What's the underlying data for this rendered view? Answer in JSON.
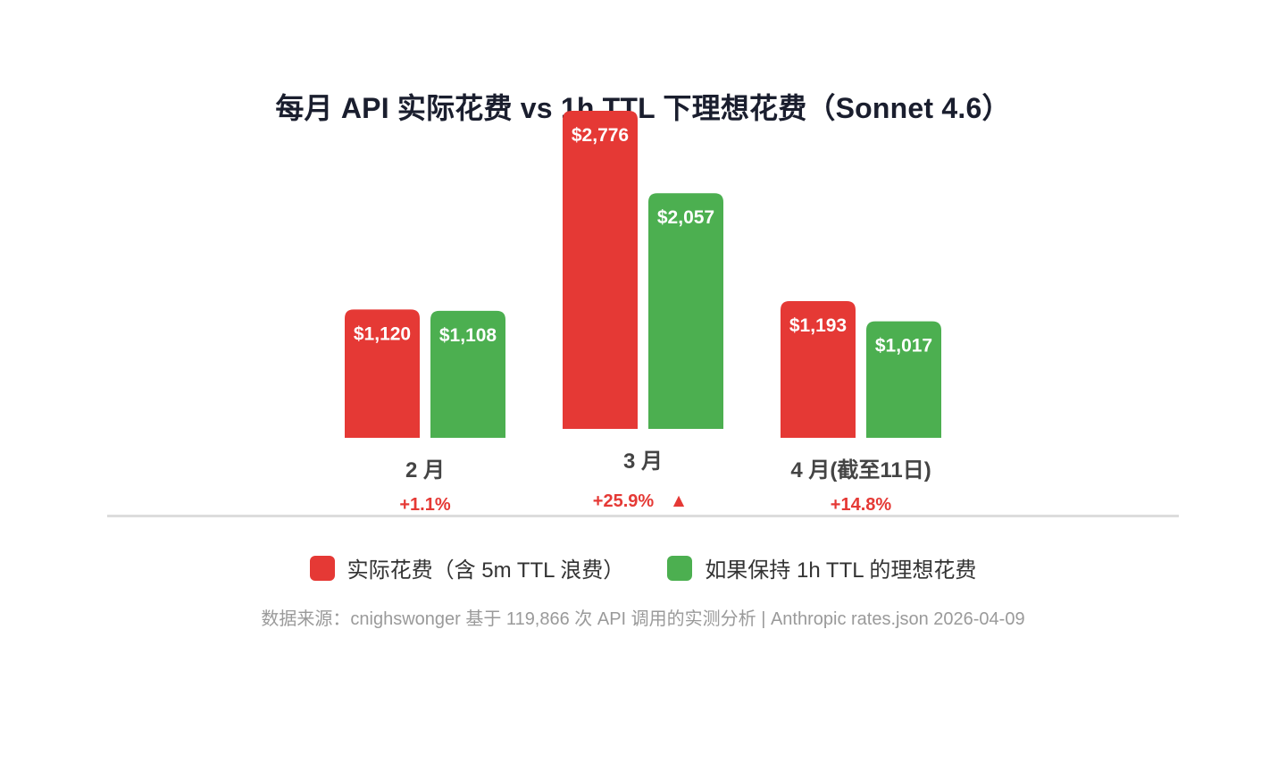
{
  "chart_data": {
    "type": "bar",
    "title": "每月 API 实际花费 vs 1h TTL 下理想花费（Sonnet 4.6）",
    "categories": [
      "2 月",
      "3 月",
      "4 月(截至11日)"
    ],
    "series": [
      {
        "name": "实际花费（含 5m TTL 浪费）",
        "color": "#e53935",
        "values": [
          1120,
          2776,
          1193
        ],
        "labels": [
          "$1,120",
          "$2,776",
          "$1,193"
        ]
      },
      {
        "name": "如果保持 1h TTL 的理想花费",
        "color": "#4caf50",
        "values": [
          1108,
          2057,
          1017
        ],
        "labels": [
          "$1,108",
          "$2,057",
          "$1,017"
        ]
      }
    ],
    "deltas": [
      "+1.1%",
      "+25.9%",
      "+14.8%"
    ],
    "delta_marker": "▲",
    "delta_color": "#e53935",
    "xlabel": "",
    "ylabel": "",
    "ylim": [
      0,
      2776
    ],
    "grid": false,
    "legend_position": "bottom"
  },
  "source_note": "数据来源：cnighswonger 基于 119,866 次 API 调用的实测分析 | Anthropic rates.json 2026-04-09"
}
